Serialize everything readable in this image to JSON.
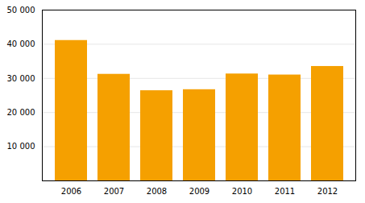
{
  "chart_data": {
    "type": "bar",
    "categories": [
      "2006",
      "2007",
      "2008",
      "2009",
      "2010",
      "2011",
      "2012"
    ],
    "values": [
      41100,
      31200,
      26400,
      26700,
      31300,
      31000,
      33500
    ],
    "color": "#F5A000",
    "ylim": [
      0,
      50000
    ],
    "yticks": [
      {
        "value": 10000,
        "label": "10 000"
      },
      {
        "value": 20000,
        "label": "20 000"
      },
      {
        "value": 30000,
        "label": "30 000"
      },
      {
        "value": 40000,
        "label": "40 000"
      },
      {
        "value": 50000,
        "label": "50 000"
      }
    ],
    "grid": true
  }
}
